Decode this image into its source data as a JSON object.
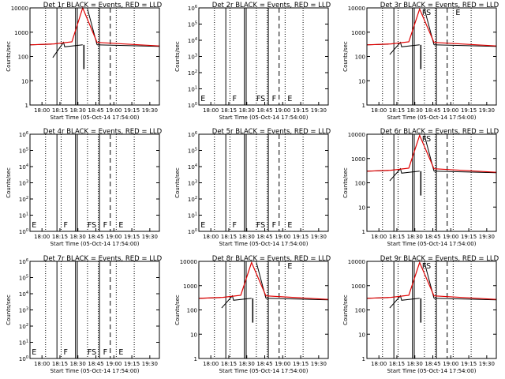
{
  "xlabel": "Start Time (05-Oct-14 17:54:00)",
  "ylabel": "Counts/sec",
  "x_tick_labels": [
    "18:00",
    "18:15",
    "18:30",
    "18:45",
    "19:00",
    "19:15",
    "19:30"
  ],
  "colors": {
    "events": "#000000",
    "lld": "#e00000"
  },
  "chart_data": [
    {
      "type": "line",
      "title": "Det 1r BLACK = Events, RED = LLD",
      "yscale": "log",
      "ylim": [
        1,
        10000
      ],
      "ytick_labels": [
        "1",
        "10",
        "100",
        "1000",
        "10000"
      ],
      "markers": [],
      "events": [
        300,
        320,
        90,
        380,
        250,
        300,
        30,
        9000,
        300,
        260
      ],
      "lld": [
        300,
        330,
        400,
        10000,
        380,
        270
      ],
      "empty": false
    },
    {
      "type": "line",
      "title": "Det 2r BLACK = Events, RED = LLD",
      "yscale": "log",
      "ylim": [
        1,
        1000000
      ],
      "ytick_labels": [
        "10^0",
        "10^1",
        "10^2",
        "10^3",
        "10^4",
        "10^5",
        "10^6"
      ],
      "markers": [
        "E",
        "F",
        "FS",
        "F",
        "E"
      ],
      "empty": true
    },
    {
      "type": "line",
      "title": "Det 3r BLACK = Events, RED = LLD",
      "yscale": "log",
      "ylim": [
        1,
        10000
      ],
      "ytick_labels": [
        "1",
        "10",
        "100",
        "1000",
        "10000"
      ],
      "markers": [
        "FS",
        "E"
      ],
      "events": [
        300,
        320,
        120,
        380,
        250,
        300,
        30,
        9000,
        300,
        260
      ],
      "lld": [
        300,
        330,
        400,
        9000,
        380,
        270
      ],
      "empty": false
    },
    {
      "type": "line",
      "title": "Det 4r BLACK = Events, RED = LLD",
      "yscale": "log",
      "ylim": [
        1,
        1000000
      ],
      "ytick_labels": [
        "10^0",
        "10^1",
        "10^2",
        "10^3",
        "10^4",
        "10^5",
        "10^6"
      ],
      "markers": [
        "E",
        "F",
        "FS",
        "F",
        "E"
      ],
      "empty": true
    },
    {
      "type": "line",
      "title": "Det 5r BLACK = Events, RED = LLD",
      "yscale": "log",
      "ylim": [
        1,
        1000000
      ],
      "ytick_labels": [
        "10^0",
        "10^1",
        "10^2",
        "10^3",
        "10^4",
        "10^5",
        "10^6"
      ],
      "markers": [
        "E",
        "F",
        "FS",
        "F",
        "E"
      ],
      "empty": true
    },
    {
      "type": "line",
      "title": "Det 6r BLACK = Events, RED = LLD",
      "yscale": "log",
      "ylim": [
        1,
        10000
      ],
      "ytick_labels": [
        "1",
        "10",
        "100",
        "1000",
        "10000"
      ],
      "markers": [
        "FS"
      ],
      "events": [
        300,
        320,
        120,
        380,
        250,
        300,
        30,
        9000,
        300,
        260
      ],
      "lld": [
        300,
        330,
        400,
        9000,
        380,
        270
      ],
      "empty": false
    },
    {
      "type": "line",
      "title": "Det 7r BLACK = Events, RED = LLD",
      "yscale": "log",
      "ylim": [
        1,
        1000000
      ],
      "ytick_labels": [
        "10^0",
        "10^1",
        "10^2",
        "10^3",
        "10^4",
        "10^5",
        "10^6"
      ],
      "markers": [
        "E",
        "F",
        "FS",
        "F",
        "E"
      ],
      "empty": true
    },
    {
      "type": "line",
      "title": "Det 8r BLACK = Events, RED = LLD",
      "yscale": "log",
      "ylim": [
        1,
        10000
      ],
      "ytick_labels": [
        "1",
        "10",
        "100",
        "1000",
        "10000"
      ],
      "markers": [
        "E"
      ],
      "events": [
        300,
        320,
        120,
        380,
        250,
        300,
        30,
        9000,
        300,
        260
      ],
      "lld": [
        300,
        330,
        400,
        9000,
        380,
        270
      ],
      "empty": false
    },
    {
      "type": "line",
      "title": "Det 9r BLACK = Events, RED = LLD",
      "yscale": "log",
      "ylim": [
        1,
        10000
      ],
      "ytick_labels": [
        "1",
        "10",
        "100",
        "1000",
        "10000"
      ],
      "markers": [
        "FS"
      ],
      "events": [
        300,
        320,
        120,
        380,
        250,
        300,
        30,
        9000,
        300,
        260
      ],
      "lld": [
        300,
        330,
        400,
        9000,
        380,
        270
      ],
      "empty": false
    }
  ]
}
